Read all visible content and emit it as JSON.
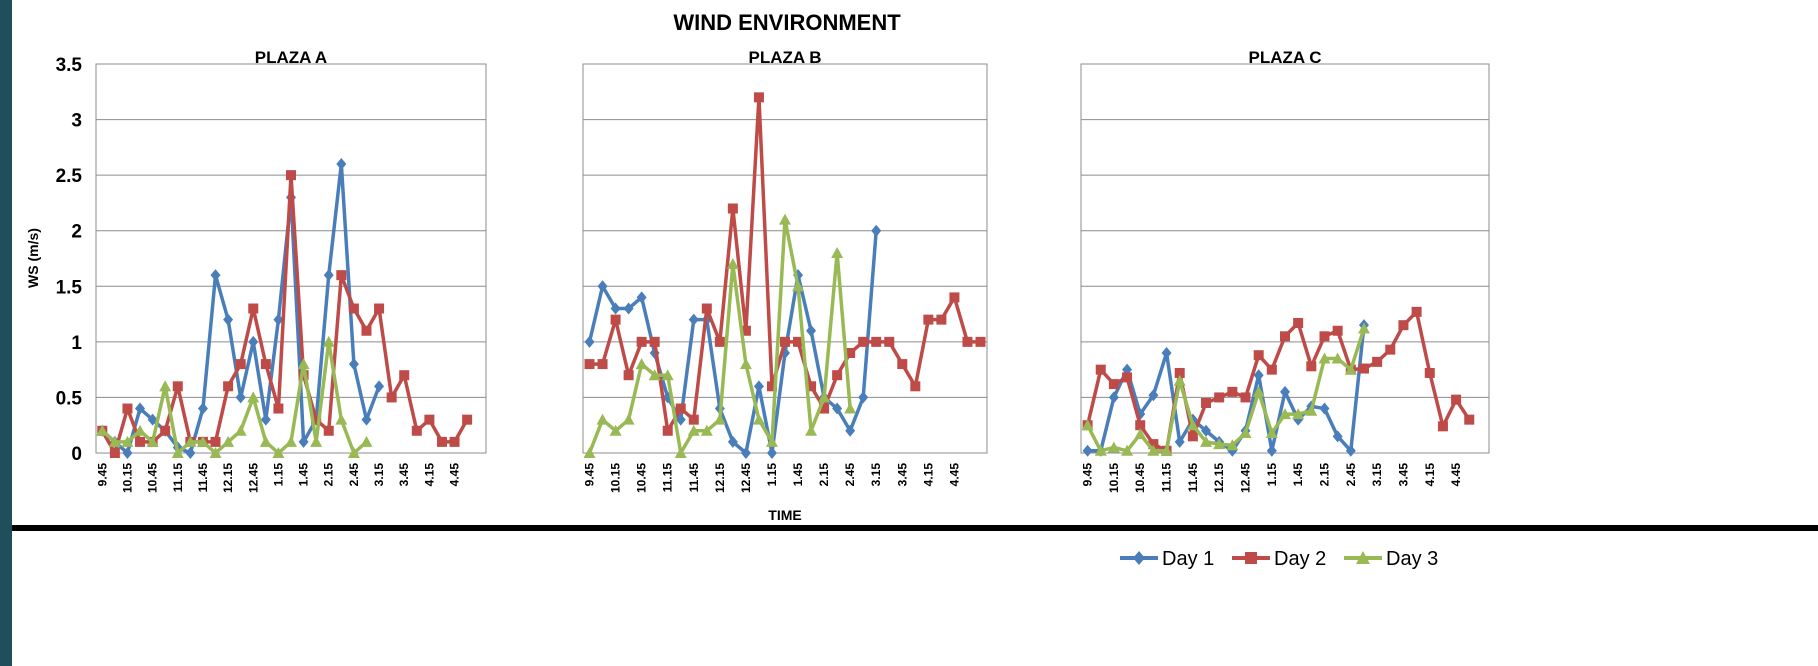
{
  "chart_data": {
    "title": "WIND ENVIRONMENT",
    "ylabel": "WS (m/s)",
    "xlabel": "TIME",
    "ylim": [
      0,
      3.5
    ],
    "yticks": [
      "0",
      "0.5",
      "1",
      "1.5",
      "2",
      "2.5",
      "3",
      "3.5"
    ],
    "ytick_values": [
      0,
      0.5,
      1,
      1.5,
      2,
      2.5,
      3,
      3.5
    ],
    "x_tick_labels": [
      "9.45",
      "10.15",
      "10.45",
      "11.15",
      "11.45",
      "12.15",
      "12.45",
      "1.15",
      "1.45",
      "2.15",
      "2.45",
      "3.15",
      "3.45",
      "4.15",
      "4.45"
    ],
    "legend": [
      {
        "name": "Day 1",
        "color": "#4a7ebb",
        "marker": "diamond"
      },
      {
        "name": "Day 2",
        "color": "#be4b48",
        "marker": "square"
      },
      {
        "name": "Day 3",
        "color": "#98b954",
        "marker": "triangle"
      }
    ],
    "legend_position": "bottom-right",
    "grid": true,
    "charts": [
      {
        "type": "line",
        "title": "PLAZA A",
        "series": [
          {
            "name": "Day 1",
            "values": [
              0.2,
              0.1,
              0,
              0.4,
              0.3,
              0.2,
              0.05,
              0,
              0.4,
              1.6,
              1.2,
              0.5,
              1.0,
              0.3,
              1.2,
              2.3,
              0.1,
              0.3,
              1.6,
              2.6,
              0.8,
              0.3,
              0.6
            ]
          },
          {
            "name": "Day 2",
            "values": [
              0.2,
              0,
              0.4,
              0.1,
              0.1,
              0.2,
              0.6,
              0.1,
              0.1,
              0.1,
              0.6,
              0.8,
              1.3,
              0.8,
              0.4,
              2.5,
              0.7,
              0.3,
              0.2,
              1.6,
              1.3,
              1.1,
              1.3,
              0.5,
              0.7,
              0.2,
              0.3,
              0.1,
              0.1,
              0.3
            ]
          },
          {
            "name": "Day 3",
            "values": [
              0.2,
              0.1,
              0.1,
              0.2,
              0.1,
              0.6,
              0,
              0.1,
              0.1,
              0,
              0.1,
              0.2,
              0.5,
              0.1,
              0,
              0.1,
              0.8,
              0.1,
              1.0,
              0.3,
              0,
              0.1
            ]
          }
        ]
      },
      {
        "type": "line",
        "title": "PLAZA B",
        "series": [
          {
            "name": "Day 1",
            "values": [
              1.0,
              1.5,
              1.3,
              1.3,
              1.4,
              0.9,
              0.5,
              0.3,
              1.2,
              1.2,
              0.4,
              0.1,
              0,
              0.6,
              0,
              0.9,
              1.6,
              1.1,
              0.5,
              0.4,
              0.2,
              0.5,
              2.0
            ]
          },
          {
            "name": "Day 2",
            "values": [
              0.8,
              0.8,
              1.2,
              0.7,
              1.0,
              1.0,
              0.2,
              0.4,
              0.3,
              1.3,
              1.0,
              2.2,
              1.1,
              3.2,
              0.6,
              1.0,
              1.0,
              0.6,
              0.4,
              0.7,
              0.9,
              1.0,
              1.0,
              1.0,
              0.8,
              0.6,
              1.2,
              1.2,
              1.4,
              1.0,
              1.0
            ]
          },
          {
            "name": "Day 3",
            "values": [
              0,
              0.3,
              0.2,
              0.3,
              0.8,
              0.7,
              0.7,
              0,
              0.2,
              0.2,
              0.3,
              1.7,
              0.8,
              0.3,
              0.1,
              2.1,
              1.5,
              0.2,
              0.5,
              1.8,
              0.4
            ]
          }
        ]
      },
      {
        "type": "line",
        "title": "PLAZA C",
        "series": [
          {
            "name": "Day 1",
            "values": [
              0.02,
              0.02,
              0.5,
              0.75,
              0.35,
              0.52,
              0.9,
              0.1,
              0.3,
              0.2,
              0.1,
              0.02,
              0.2,
              0.7,
              0.02,
              0.55,
              0.3,
              0.42,
              0.4,
              0.15,
              0.02,
              1.15
            ]
          },
          {
            "name": "Day 2",
            "values": [
              0.25,
              0.75,
              0.62,
              0.68,
              0.25,
              0.08,
              0.02,
              0.72,
              0.15,
              0.45,
              0.5,
              0.55,
              0.5,
              0.88,
              0.75,
              1.05,
              1.17,
              0.78,
              1.05,
              1.1,
              0.75,
              0.76,
              0.82,
              0.93,
              1.15,
              1.27,
              0.72,
              0.24,
              0.48,
              0.3
            ]
          },
          {
            "name": "Day 3",
            "values": [
              0.25,
              0.02,
              0.05,
              0.02,
              0.17,
              0.02,
              0.02,
              0.65,
              0.25,
              0.1,
              0.08,
              0.07,
              0.18,
              0.55,
              0.18,
              0.35,
              0.35,
              0.38,
              0.85,
              0.85,
              0.75,
              1.12
            ]
          }
        ]
      }
    ]
  }
}
